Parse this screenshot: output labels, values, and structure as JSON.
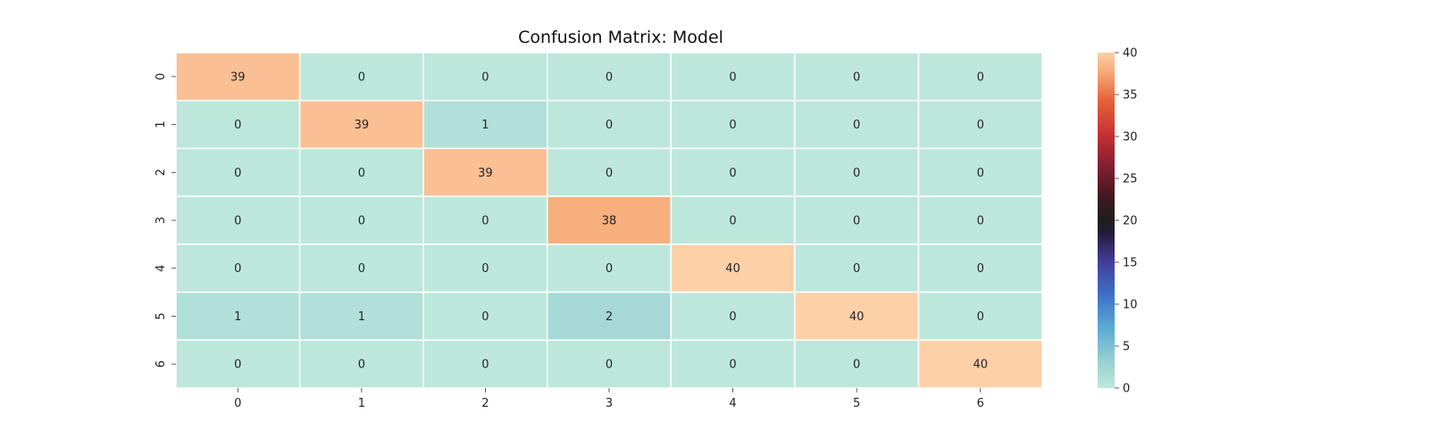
{
  "chart_data": {
    "type": "heatmap",
    "title": "Confusion Matrix: Model",
    "xlabel": "",
    "ylabel": "",
    "x_categories": [
      "0",
      "1",
      "2",
      "3",
      "4",
      "5",
      "6"
    ],
    "y_categories": [
      "0",
      "1",
      "2",
      "3",
      "4",
      "5",
      "6"
    ],
    "values": [
      [
        39,
        0,
        0,
        0,
        0,
        0,
        0
      ],
      [
        0,
        39,
        1,
        0,
        0,
        0,
        0
      ],
      [
        0,
        0,
        39,
        0,
        0,
        0,
        0
      ],
      [
        0,
        0,
        0,
        38,
        0,
        0,
        0
      ],
      [
        0,
        0,
        0,
        0,
        40,
        0,
        0
      ],
      [
        1,
        1,
        0,
        2,
        0,
        40,
        0
      ],
      [
        0,
        0,
        0,
        0,
        0,
        0,
        40
      ]
    ],
    "colorbar": {
      "range": [
        0,
        40
      ],
      "ticks": [
        0,
        5,
        10,
        15,
        20,
        25,
        30,
        35,
        40
      ],
      "colormap": "icefire"
    },
    "annotations": true,
    "grid": false,
    "cell_border_color": "#ffffff"
  }
}
